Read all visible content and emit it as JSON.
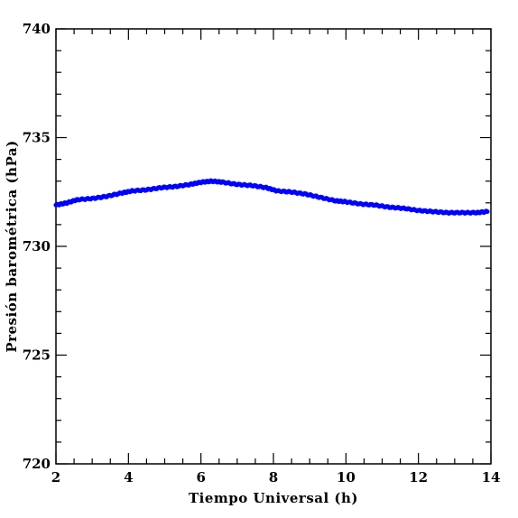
{
  "chart_data": {
    "type": "scatter",
    "title": "",
    "xlabel": "Tiempo Universal (h)",
    "ylabel": "Presión barométrica (hPa)",
    "xlim": [
      2,
      14
    ],
    "ylim": [
      720,
      740
    ],
    "xticks": [
      "2",
      "4",
      "6",
      "8",
      "10",
      "12",
      "14"
    ],
    "yticks": [
      "720",
      "725",
      "730",
      "735",
      "740"
    ],
    "grid": false,
    "marker_color": "#0000ff",
    "series": [
      {
        "x": [
          2.0,
          2.3,
          2.6,
          3.0,
          3.4,
          3.8,
          4.1,
          4.5,
          4.9,
          5.3,
          5.7,
          6.0,
          6.3,
          6.6,
          7.0,
          7.4,
          7.8,
          8.1,
          8.5,
          8.9,
          9.3,
          9.7,
          10.0,
          10.4,
          10.8,
          11.2,
          11.6,
          12.0,
          12.4,
          12.8,
          13.2,
          13.6,
          13.9
        ],
        "y": [
          731.9,
          732.0,
          732.15,
          732.2,
          732.3,
          732.45,
          732.55,
          732.6,
          732.7,
          732.75,
          732.85,
          732.95,
          733.0,
          732.95,
          732.85,
          732.8,
          732.7,
          732.55,
          732.5,
          732.4,
          732.25,
          732.1,
          732.05,
          731.95,
          731.9,
          731.8,
          731.75,
          731.65,
          731.6,
          731.55,
          731.55,
          731.55,
          731.6
        ]
      }
    ]
  }
}
